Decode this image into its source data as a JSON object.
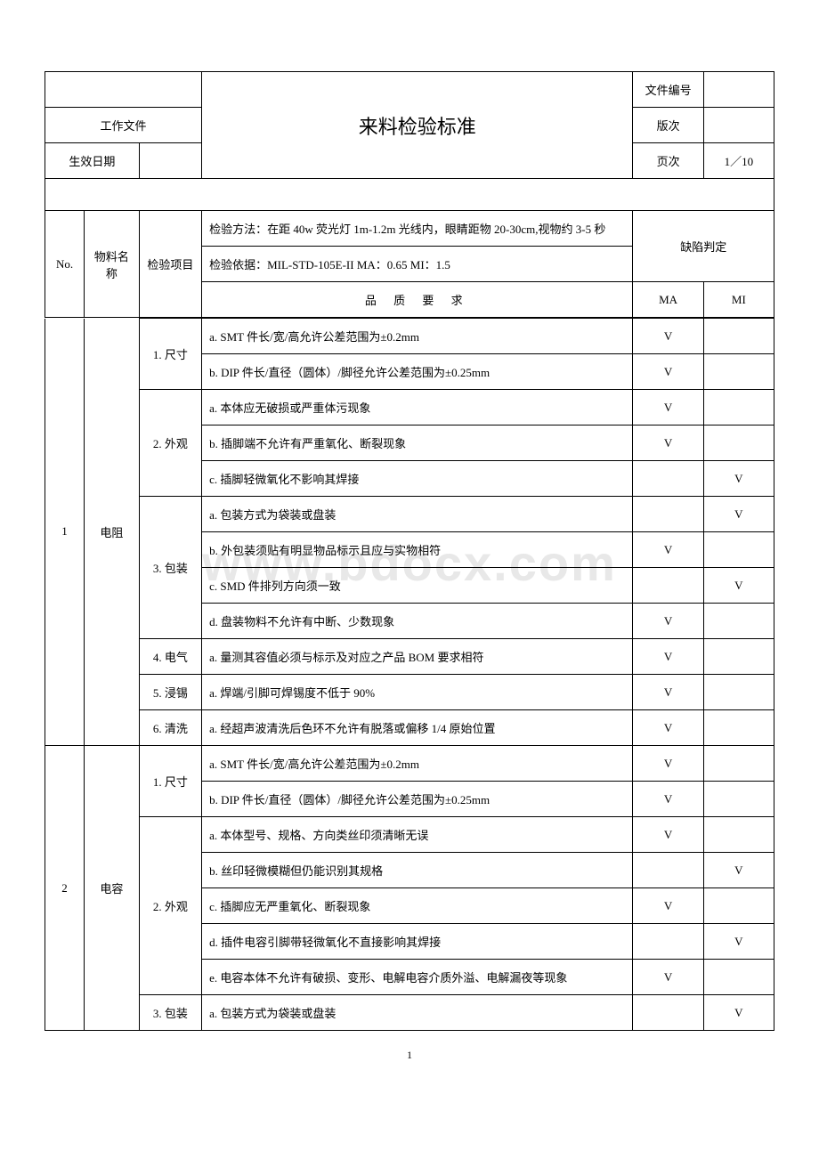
{
  "header": {
    "work_file": "工作文件",
    "effective_date": "生效日期",
    "title": "来料检验标准",
    "doc_number_label": "文件编号",
    "version_label": "版次",
    "page_label": "页次",
    "page_value": "1／10"
  },
  "table_header": {
    "no": "No.",
    "material_name": "物料名称",
    "inspect_item": "检验项目",
    "method": "检验方法：在距 40w 荧光灯 1m-1.2m 光线内，眼睛距物 20-30cm,视物约 3-5 秒",
    "basis": "检验依据：MIL-STD-105E-II    MA：0.65  MI：1.5",
    "defect_judge": "缺陷判定",
    "quality_req": "品 质 要 求",
    "ma": "MA",
    "mi": "MI"
  },
  "materials": [
    {
      "no": "1",
      "name": "电阻",
      "items": [
        {
          "item": "1. 尺寸",
          "rows": [
            {
              "req": "a. SMT 件长/宽/高允许公差范围为±0.2mm",
              "ma": "V",
              "mi": ""
            },
            {
              "req": "b. DIP 件长/直径（圆体）/脚径允许公差范围为±0.25mm",
              "ma": "V",
              "mi": ""
            }
          ]
        },
        {
          "item": "2. 外观",
          "rows": [
            {
              "req": "a.  本体应无破损或严重体污现象",
              "ma": "V",
              "mi": ""
            },
            {
              "req": "b.  插脚端不允许有严重氧化、断裂现象",
              "ma": "V",
              "mi": ""
            },
            {
              "req": "c.  插脚轻微氧化不影响其焊接",
              "ma": "",
              "mi": "V"
            }
          ]
        },
        {
          "item": "3. 包装",
          "rows": [
            {
              "req": "a.  包装方式为袋装或盘装",
              "ma": "",
              "mi": "V"
            },
            {
              "req": "b.  外包装须贴有明显物品标示且应与实物相符",
              "ma": "V",
              "mi": ""
            },
            {
              "req": "c. SMD 件排列方向须一致",
              "ma": "",
              "mi": "V"
            },
            {
              "req": "d.  盘装物料不允许有中断、少数现象",
              "ma": "V",
              "mi": ""
            }
          ]
        },
        {
          "item": "4. 电气",
          "rows": [
            {
              "req": "a.  量测其容值必须与标示及对应之产品 BOM 要求相符",
              "ma": "V",
              "mi": ""
            }
          ]
        },
        {
          "item": "5. 浸锡",
          "rows": [
            {
              "req": "a.  焊端/引脚可焊锡度不低于 90%",
              "ma": "V",
              "mi": ""
            }
          ]
        },
        {
          "item": "6. 清洗",
          "rows": [
            {
              "req": "a.  经超声波清洗后色环不允许有脱落或偏移 1/4 原始位置",
              "ma": "V",
              "mi": ""
            }
          ]
        }
      ]
    },
    {
      "no": "2",
      "name": "电容",
      "items": [
        {
          "item": "1. 尺寸",
          "rows": [
            {
              "req": "a. SMT 件长/宽/高允许公差范围为±0.2mm",
              "ma": "V",
              "mi": ""
            },
            {
              "req": "b. DIP 件长/直径（圆体）/脚径允许公差范围为±0.25mm",
              "ma": "V",
              "mi": ""
            }
          ]
        },
        {
          "item": "2. 外观",
          "rows": [
            {
              "req": "a.  本体型号、规格、方向类丝印须清晰无误",
              "ma": "V",
              "mi": ""
            },
            {
              "req": "b.  丝印轻微模糊但仍能识别其规格",
              "ma": "",
              "mi": "V"
            },
            {
              "req": "c.  插脚应无严重氧化、断裂现象",
              "ma": "V",
              "mi": ""
            },
            {
              "req": "d.  插件电容引脚带轻微氧化不直接影响其焊接",
              "ma": "",
              "mi": "V"
            },
            {
              "req": "e.  电容本体不允许有破损、变形、电解电容介质外溢、电解漏夜等现象",
              "ma": "V",
              "mi": ""
            }
          ]
        },
        {
          "item": "3. 包装",
          "rows": [
            {
              "req": "a.  包装方式为袋装或盘装",
              "ma": "",
              "mi": "V"
            }
          ]
        }
      ]
    }
  ],
  "watermark": "www.bdocx.com",
  "page_number": "1"
}
